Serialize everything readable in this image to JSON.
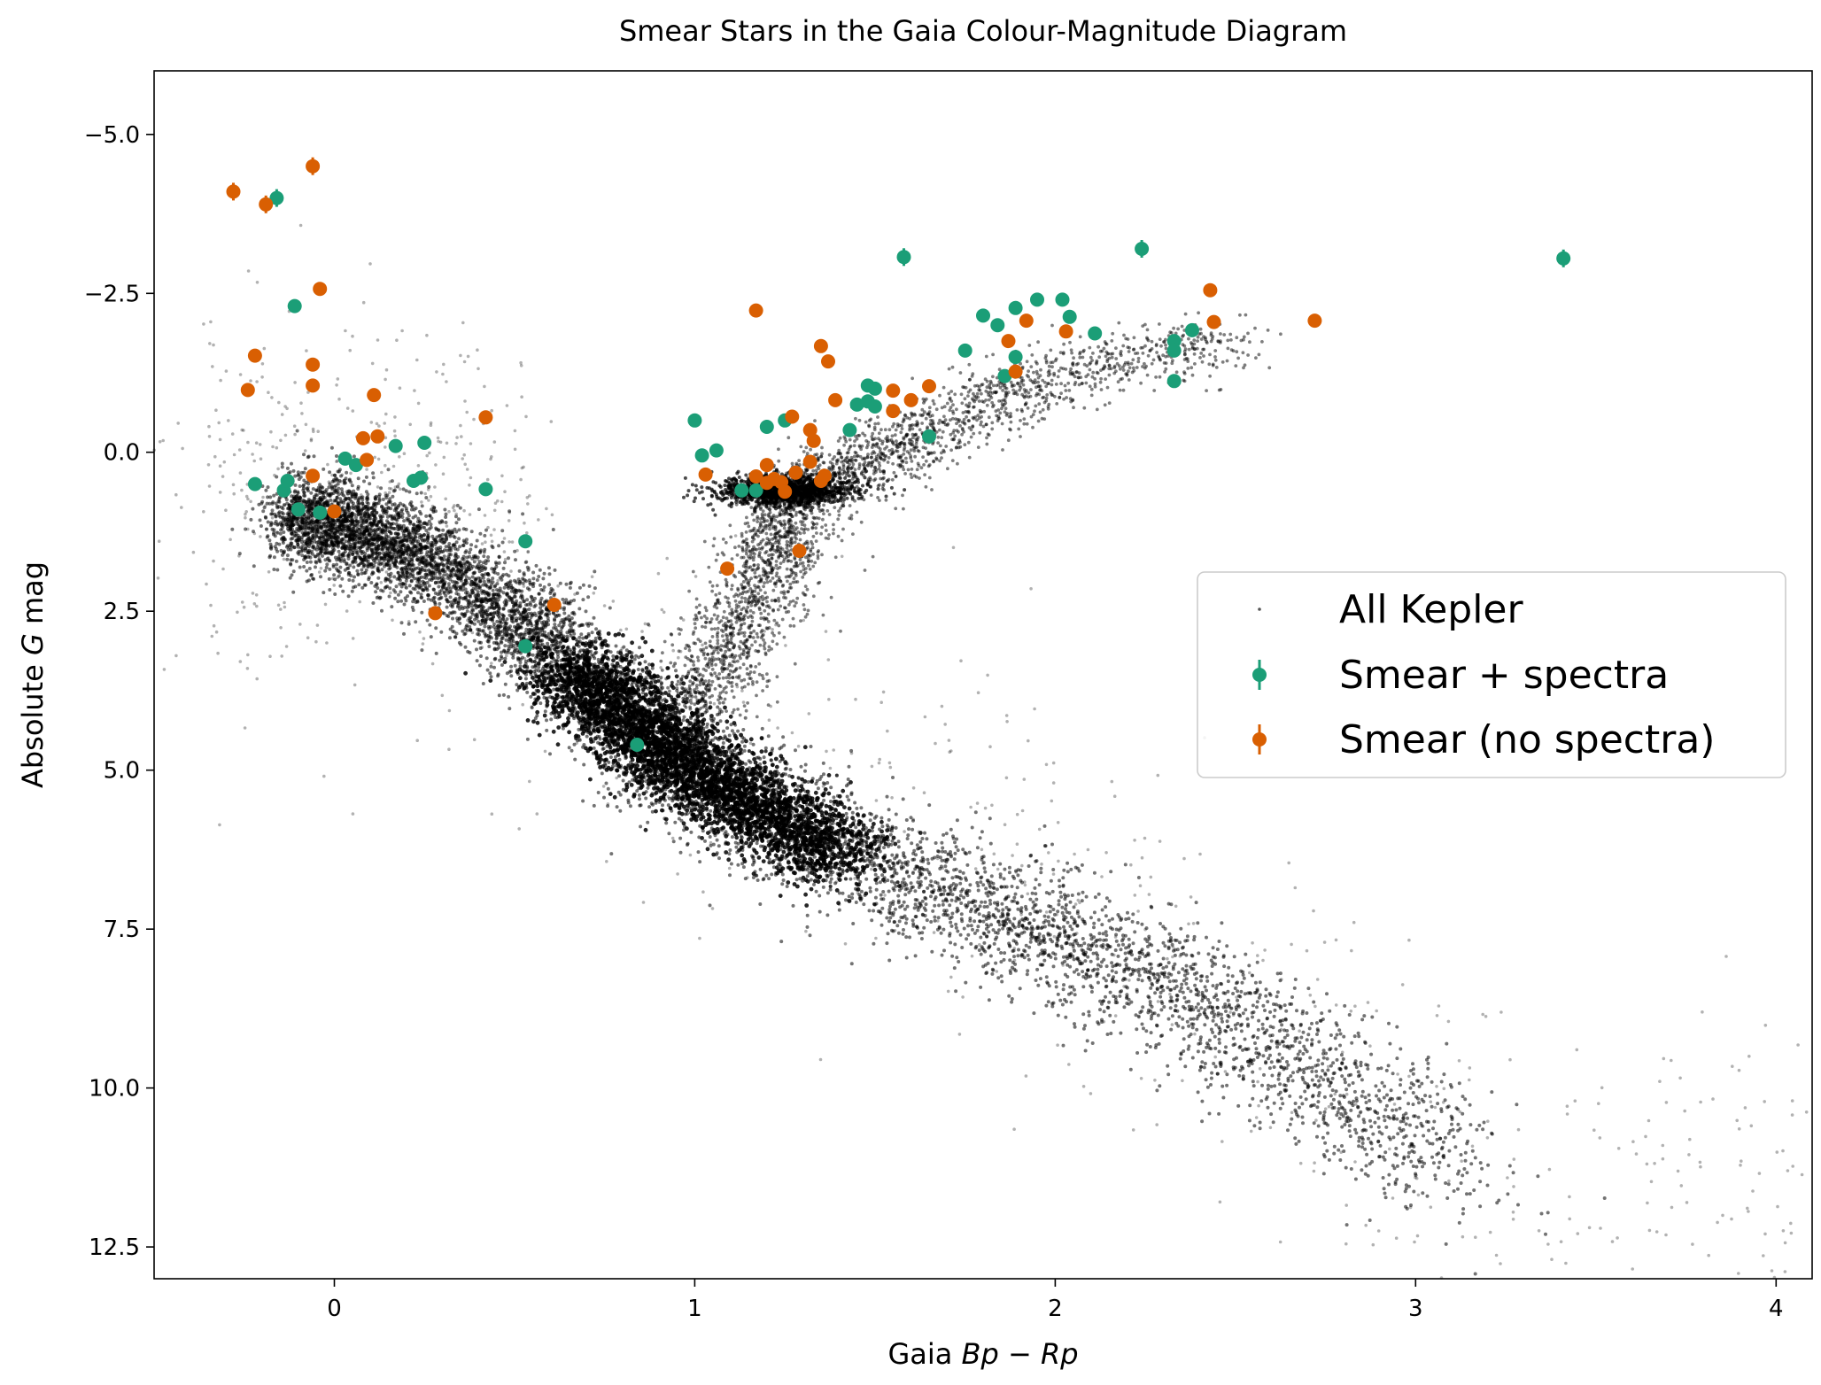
{
  "chart_data": {
    "type": "scatter",
    "title": "Smear Stars in the Gaia Colour-Magnitude Diagram",
    "xlabel_prefix": "Gaia ",
    "xlabel_math": "Bp − Rp",
    "ylabel_prefix": "Absolute ",
    "ylabel_math": "G",
    "ylabel_suffix": " mag",
    "xlim": [
      -0.5,
      4.1
    ],
    "ylim": [
      13.0,
      -6.0
    ],
    "y_inverted": true,
    "x_ticks": [
      0,
      1,
      2,
      3,
      4
    ],
    "x_tick_labels": [
      "0",
      "1",
      "2",
      "3",
      "4"
    ],
    "y_ticks": [
      -5.0,
      -2.5,
      0.0,
      2.5,
      5.0,
      7.5,
      10.0,
      12.5
    ],
    "y_tick_labels": [
      "−5.0",
      "−2.5",
      "0.0",
      "2.5",
      "5.0",
      "7.5",
      "10.0",
      "12.5"
    ],
    "legend_placement": "center-right",
    "colors": {
      "background_points": "#000000",
      "smear_spectra": "#1b9e77",
      "smear_no_spectra": "#d95f02"
    },
    "background": {
      "name": "All Kepler",
      "description_values": {
        "main_sequence_track": [
          [
            -0.1,
            1.0
          ],
          [
            0.2,
            1.5
          ],
          [
            0.5,
            2.6
          ],
          [
            0.7,
            3.6
          ],
          [
            0.9,
            4.6
          ],
          [
            1.1,
            5.4
          ],
          [
            1.4,
            6.3
          ],
          [
            1.8,
            7.2
          ],
          [
            2.2,
            8.1
          ],
          [
            2.6,
            9.3
          ],
          [
            3.0,
            10.8
          ],
          [
            3.3,
            11.8
          ]
        ],
        "giant_branch_track": [
          [
            1.0,
            4.0
          ],
          [
            1.1,
            3.0
          ],
          [
            1.2,
            2.0
          ],
          [
            1.25,
            1.2
          ],
          [
            1.3,
            0.6
          ],
          [
            1.5,
            0.1
          ],
          [
            1.7,
            -0.5
          ],
          [
            2.0,
            -1.2
          ],
          [
            2.5,
            -1.8
          ]
        ],
        "red_clump": [
          1.25,
          0.6
        ]
      }
    },
    "series": [
      {
        "name": "Smear + spectra",
        "points": [
          [
            -0.16,
            -4.0
          ],
          [
            -0.11,
            -2.3
          ],
          [
            -0.22,
            0.5
          ],
          [
            -0.14,
            0.6
          ],
          [
            -0.1,
            0.9
          ],
          [
            -0.13,
            0.45
          ],
          [
            -0.04,
            0.95
          ],
          [
            0.03,
            0.1
          ],
          [
            0.06,
            0.2
          ],
          [
            0.17,
            -0.1
          ],
          [
            0.22,
            0.45
          ],
          [
            0.24,
            0.4
          ],
          [
            0.25,
            -0.15
          ],
          [
            0.42,
            0.58
          ],
          [
            0.53,
            1.4
          ],
          [
            0.53,
            3.05
          ],
          [
            0.84,
            4.6
          ],
          [
            1.0,
            -0.5
          ],
          [
            1.02,
            0.05
          ],
          [
            1.06,
            -0.03
          ],
          [
            1.13,
            0.6
          ],
          [
            1.17,
            0.6
          ],
          [
            1.2,
            -0.4
          ],
          [
            1.25,
            -0.5
          ],
          [
            1.43,
            -0.35
          ],
          [
            1.45,
            -0.75
          ],
          [
            1.48,
            -1.05
          ],
          [
            1.5,
            -1.0
          ],
          [
            1.48,
            -0.8
          ],
          [
            1.5,
            -0.72
          ],
          [
            1.58,
            -3.07
          ],
          [
            1.65,
            -0.25
          ],
          [
            1.75,
            -1.6
          ],
          [
            1.8,
            -2.15
          ],
          [
            1.84,
            -2.0
          ],
          [
            1.86,
            -1.2
          ],
          [
            1.89,
            -1.5
          ],
          [
            1.89,
            -2.27
          ],
          [
            1.95,
            -2.4
          ],
          [
            2.02,
            -2.4
          ],
          [
            2.04,
            -2.13
          ],
          [
            2.11,
            -1.87
          ],
          [
            2.24,
            -3.2
          ],
          [
            2.33,
            -1.12
          ],
          [
            2.33,
            -1.75
          ],
          [
            2.33,
            -1.6
          ],
          [
            2.38,
            -1.92
          ],
          [
            3.41,
            -3.05
          ]
        ]
      },
      {
        "name": "Smear (no spectra)",
        "points": [
          [
            -0.28,
            -4.1
          ],
          [
            -0.19,
            -3.9
          ],
          [
            -0.06,
            -4.5
          ],
          [
            -0.04,
            -2.57
          ],
          [
            -0.22,
            -1.52
          ],
          [
            -0.24,
            -0.98
          ],
          [
            -0.06,
            -1.38
          ],
          [
            -0.06,
            -1.05
          ],
          [
            -0.06,
            0.37
          ],
          [
            0.0,
            0.93
          ],
          [
            0.08,
            -0.22
          ],
          [
            0.09,
            0.12
          ],
          [
            0.11,
            -0.9
          ],
          [
            0.12,
            -0.25
          ],
          [
            0.42,
            -0.55
          ],
          [
            0.28,
            2.53
          ],
          [
            0.61,
            2.4
          ],
          [
            1.03,
            0.35
          ],
          [
            1.09,
            1.83
          ],
          [
            1.17,
            -2.23
          ],
          [
            1.17,
            0.38
          ],
          [
            1.2,
            0.48
          ],
          [
            1.2,
            0.2
          ],
          [
            1.22,
            0.42
          ],
          [
            1.24,
            0.47
          ],
          [
            1.25,
            0.62
          ],
          [
            1.27,
            -0.56
          ],
          [
            1.28,
            0.32
          ],
          [
            1.29,
            1.55
          ],
          [
            1.32,
            -0.35
          ],
          [
            1.32,
            0.15
          ],
          [
            1.33,
            -0.18
          ],
          [
            1.35,
            -1.67
          ],
          [
            1.35,
            0.45
          ],
          [
            1.36,
            0.37
          ],
          [
            1.37,
            -1.43
          ],
          [
            1.39,
            -0.82
          ],
          [
            1.55,
            -0.97
          ],
          [
            1.55,
            -0.65
          ],
          [
            1.6,
            -0.82
          ],
          [
            1.65,
            -1.04
          ],
          [
            1.87,
            -1.75
          ],
          [
            1.89,
            -1.27
          ],
          [
            1.92,
            -2.07
          ],
          [
            2.03,
            -1.9
          ],
          [
            2.43,
            -2.55
          ],
          [
            2.44,
            -2.05
          ],
          [
            2.72,
            -2.07
          ]
        ]
      }
    ]
  }
}
